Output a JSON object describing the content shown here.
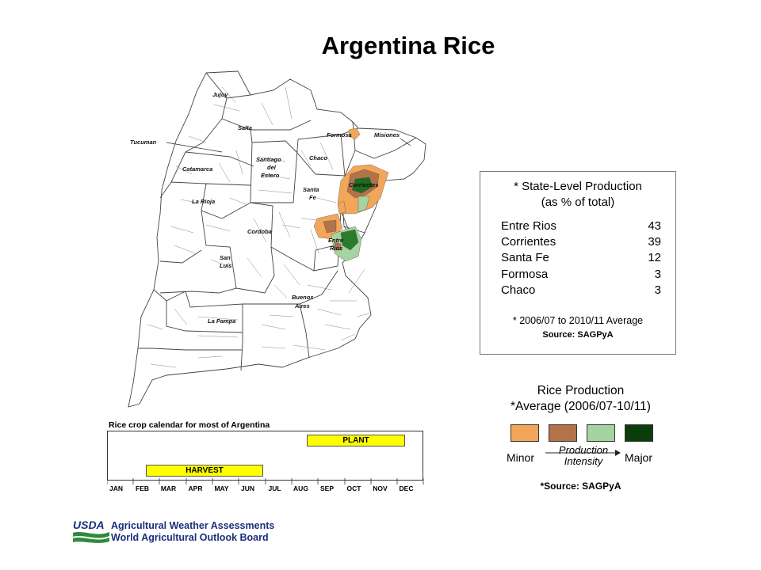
{
  "title": "Argentina Rice",
  "map": {
    "province_labels": [
      {
        "key": "jujuy",
        "text": "Jujuy"
      },
      {
        "key": "salta",
        "text": "Salta"
      },
      {
        "key": "tucuman",
        "text": "Tucuman"
      },
      {
        "key": "catamarca",
        "text": "Catamarca"
      },
      {
        "key": "santiago1",
        "text": "Santiago"
      },
      {
        "key": "santiago2",
        "text": "del"
      },
      {
        "key": "santiago3",
        "text": "Estero"
      },
      {
        "key": "formosa",
        "text": "Formosa"
      },
      {
        "key": "misiones",
        "text": "Misiones"
      },
      {
        "key": "chaco",
        "text": "Chaco"
      },
      {
        "key": "corrientes",
        "text": "Corrientes"
      },
      {
        "key": "santafe1",
        "text": "Santa"
      },
      {
        "key": "santafe2",
        "text": "Fe"
      },
      {
        "key": "larioja",
        "text": "La Rioja"
      },
      {
        "key": "cordoba",
        "text": "Cordoba"
      },
      {
        "key": "entrerios1",
        "text": "Entre"
      },
      {
        "key": "entrerios2",
        "text": "Rios"
      },
      {
        "key": "sanluis1",
        "text": "San"
      },
      {
        "key": "sanluis2",
        "text": "Luis"
      },
      {
        "key": "buenosaires1",
        "text": "Buenos"
      },
      {
        "key": "buenosaires2",
        "text": "Aires"
      },
      {
        "key": "lapampa",
        "text": "La Pampa"
      }
    ]
  },
  "state_box": {
    "heading_line1": "* State-Level Production",
    "heading_line2": "(as % of total)",
    "rows": [
      {
        "name": "Entre Rios",
        "value": "43"
      },
      {
        "name": "Corrientes",
        "value": "39"
      },
      {
        "name": "Santa Fe",
        "value": "12"
      },
      {
        "name": "Formosa",
        "value": "3"
      },
      {
        "name": "Chaco",
        "value": "3"
      }
    ],
    "note": "* 2006/07 to 2010/11 Average",
    "source": "Source: SAGPyA"
  },
  "legend": {
    "title_line1": "Rice Production",
    "title_line2": "*Average (2006/07-10/11)",
    "swatch_colors": [
      "#f2a65a",
      "#b37348",
      "#a6d4a0",
      "#0b3d0b"
    ],
    "minor_label": "Minor",
    "major_label": "Major",
    "mid_line1": "Production",
    "mid_line2": "Intensity",
    "source": "*Source: SAGPyA"
  },
  "calendar": {
    "caption": "Rice crop calendar for most of Argentina",
    "plant_label": "PLANT",
    "harvest_label": "HARVEST",
    "months": [
      "JAN",
      "FEB",
      "MAR",
      "APR",
      "MAY",
      "JUN",
      "JUL",
      "AUG",
      "SEP",
      "OCT",
      "NOV",
      "DEC"
    ],
    "bar_color": "#ffff00"
  },
  "footer": {
    "logo_text": "USDA",
    "line1": "Agricultural Weather Assessments",
    "line2": "World Agricultural Outlook Board"
  }
}
